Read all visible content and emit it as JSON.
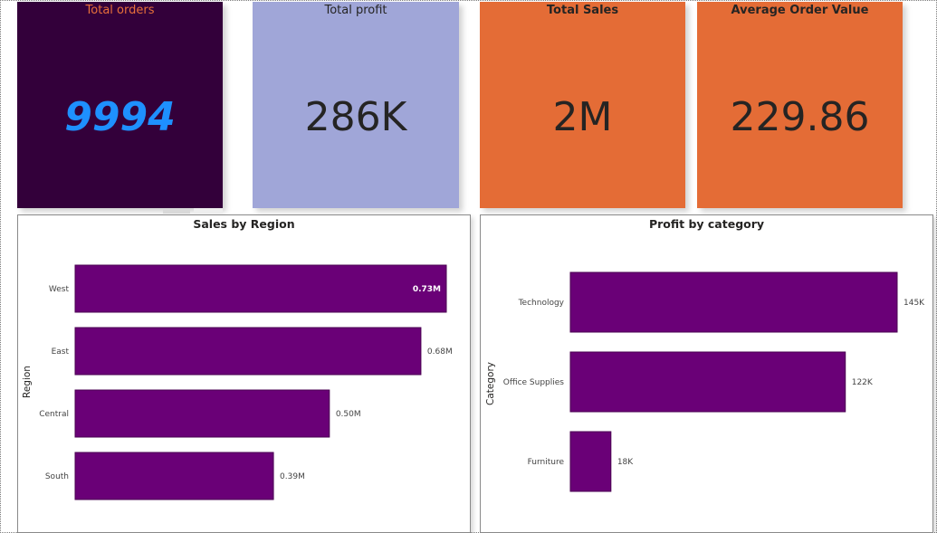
{
  "kpis": [
    {
      "title": "Total orders",
      "value": "9994",
      "bg": "#33003a",
      "title_color": "#e8703a",
      "value_color": "#1e90ff"
    },
    {
      "title": "Total profit",
      "value": "286K",
      "bg": "#a0a6d8",
      "title_color": "#252423",
      "value_color": "#252423"
    },
    {
      "title": "Total Sales",
      "value": "2M",
      "bg": "#e46c36",
      "title_color": "#252423",
      "value_color": "#252423"
    },
    {
      "title": "Average Order Value",
      "value": "229.86",
      "bg": "#e46c36",
      "title_color": "#252423",
      "value_color": "#252423"
    }
  ],
  "bar_color": "#6a0077",
  "chart_data": [
    {
      "type": "bar",
      "orientation": "horizontal",
      "title": "Sales by Region",
      "ylabel": "Region",
      "xlabel": "",
      "categories": [
        "West",
        "East",
        "Central",
        "South"
      ],
      "values": [
        0.73,
        0.68,
        0.5,
        0.39
      ],
      "data_labels": [
        "0.73M",
        "0.68M",
        "0.50M",
        "0.39M"
      ],
      "unit": "M",
      "grid": false,
      "legend": "none"
    },
    {
      "type": "bar",
      "orientation": "horizontal",
      "title": "Profit by category",
      "ylabel": "Category",
      "xlabel": "",
      "categories": [
        "Technology",
        "Office Supplies",
        "Furniture"
      ],
      "values": [
        145,
        122,
        18
      ],
      "data_labels": [
        "145K",
        "122K",
        "18K"
      ],
      "unit": "K",
      "grid": false,
      "legend": "none"
    }
  ]
}
